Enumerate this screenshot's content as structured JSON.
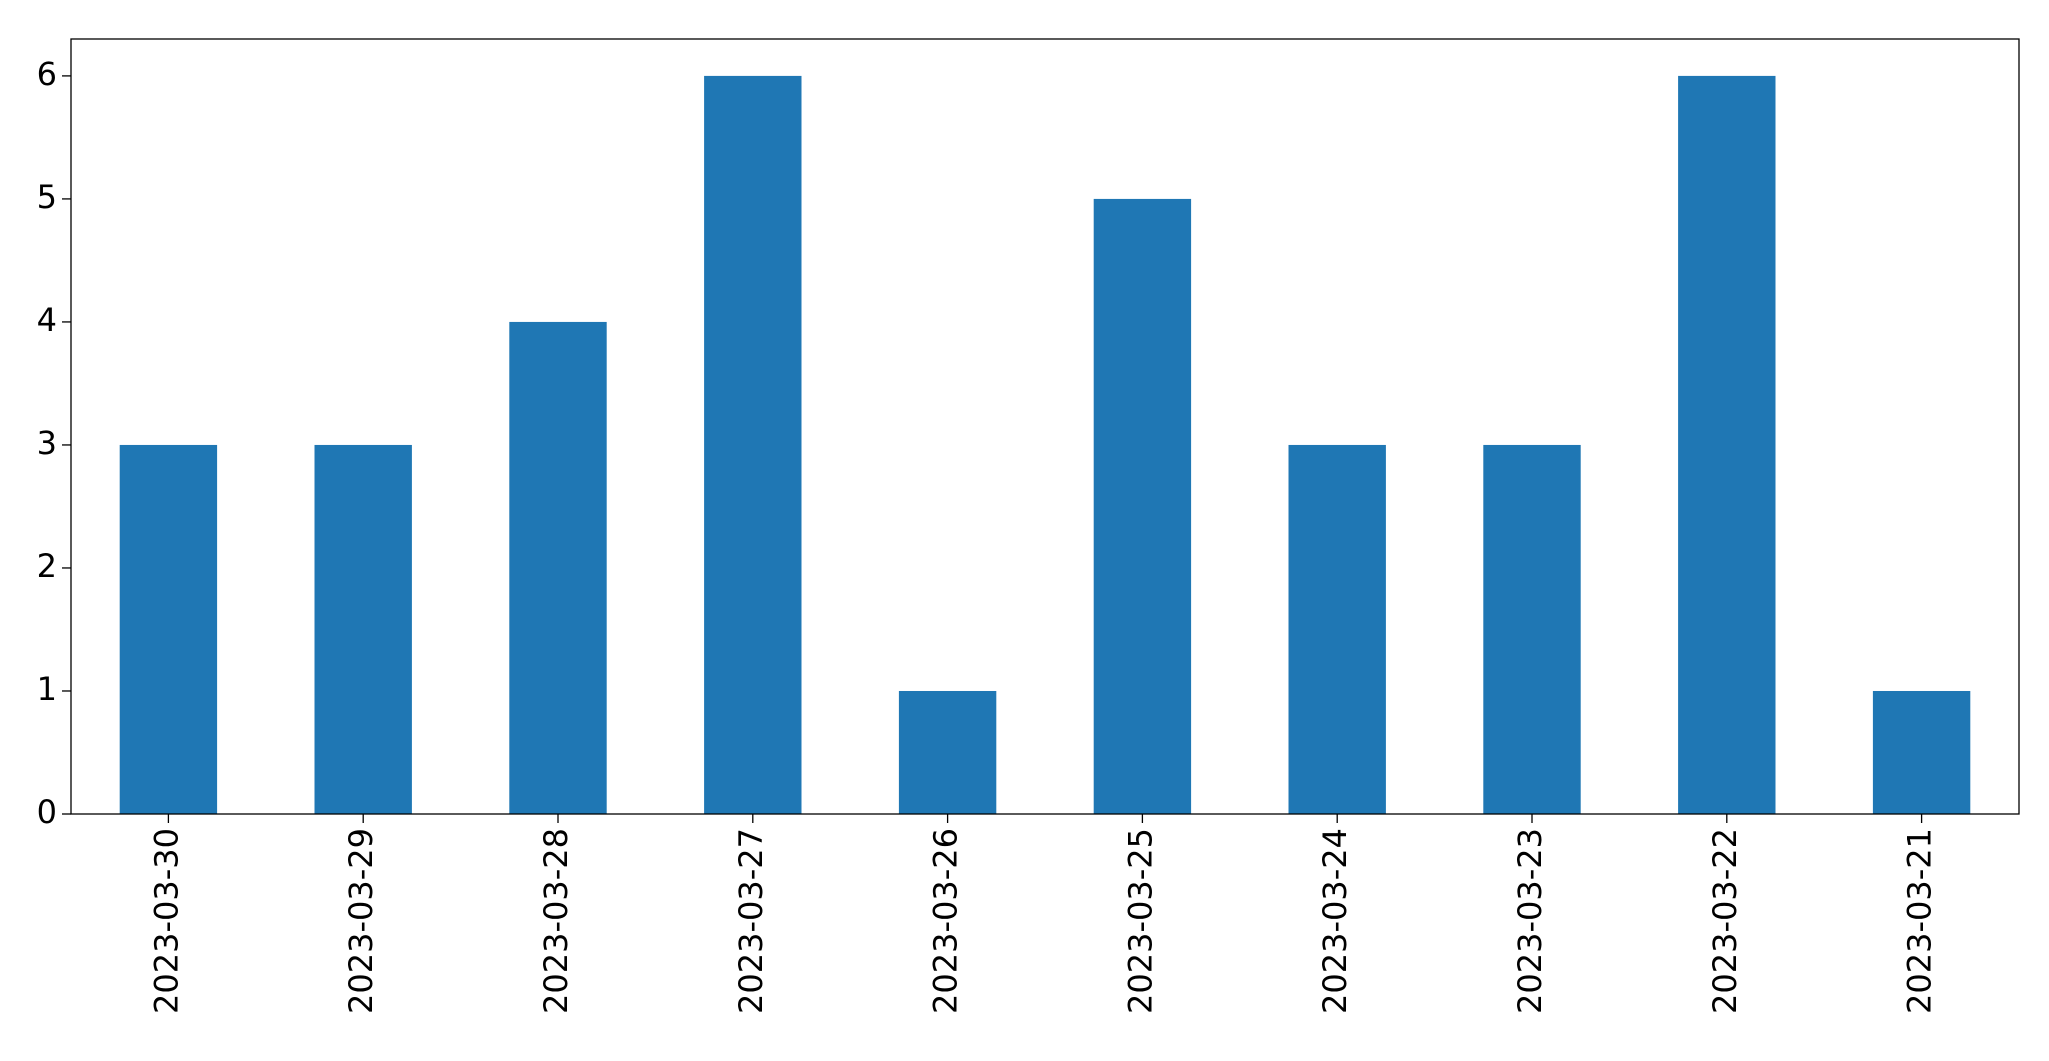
{
  "chart_data": {
    "type": "bar",
    "categories": [
      "2023-03-30",
      "2023-03-29",
      "2023-03-28",
      "2023-03-27",
      "2023-03-26",
      "2023-03-25",
      "2023-03-24",
      "2023-03-23",
      "2023-03-22",
      "2023-03-21"
    ],
    "values": [
      3,
      3,
      4,
      6,
      1,
      5,
      3,
      3,
      6,
      1
    ],
    "color": "#1f77b4",
    "ylim": [
      0,
      6.3
    ],
    "yticks": [
      0,
      1,
      2,
      3,
      4,
      5,
      6
    ],
    "grid": false
  }
}
